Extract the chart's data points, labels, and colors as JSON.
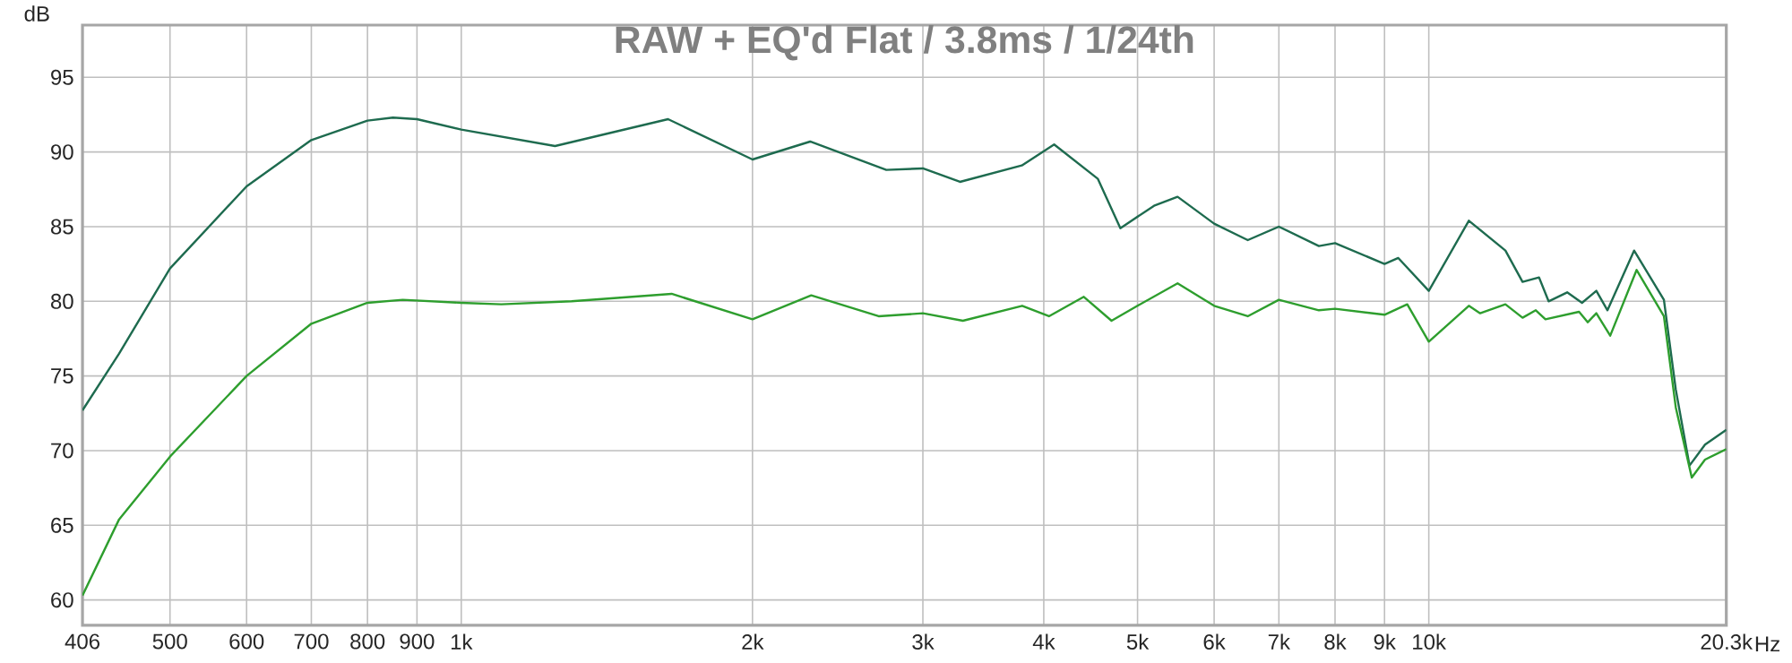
{
  "chart_data": {
    "type": "line",
    "title": "RAW + EQ'd Flat / 3.8ms / 1/24th",
    "ylabel": "dB",
    "xlabel": "Hz",
    "log": "x",
    "grid": true,
    "marker": "none",
    "line_style": "solid",
    "xlim": [
      406,
      20300
    ],
    "ylim": [
      58.3,
      98.5
    ],
    "xticks": [
      406,
      500,
      600,
      700,
      800,
      900,
      {
        "value": 1000,
        "label": "1k"
      },
      {
        "value": 2000,
        "label": "2k"
      },
      {
        "value": 3000,
        "label": "3k"
      },
      {
        "value": 4000,
        "label": "4k"
      },
      {
        "value": 5000,
        "label": "5k"
      },
      {
        "value": 6000,
        "label": "6k"
      },
      {
        "value": 7000,
        "label": "7k"
      },
      {
        "value": 8000,
        "label": "8k"
      },
      {
        "value": 9000,
        "label": "9k"
      },
      {
        "value": 10000,
        "label": "10k"
      },
      {
        "value": 20300,
        "label": "20.3k"
      }
    ],
    "yticks": [
      60,
      65,
      70,
      75,
      80,
      85,
      90,
      95
    ],
    "series": [
      {
        "color": "#1e6b4f",
        "x": [
          406,
          443,
          500,
          600,
          700,
          800,
          850,
          900,
          1000,
          1250,
          1636,
          2000,
          2294,
          2750,
          3000,
          3277,
          3797,
          4100,
          4550,
          4800,
          5200,
          5500,
          6000,
          6500,
          7000,
          7700,
          8000,
          9000,
          9300,
          10000,
          11000,
          12000,
          12500,
          13000,
          13300,
          13900,
          14400,
          14900,
          15300,
          16300,
          17500,
          18000,
          18600,
          19300,
          20300
        ],
        "values": [
          72.7,
          76.5,
          82.2,
          87.7,
          90.8,
          92.1,
          92.3,
          92.2,
          91.5,
          90.4,
          92.2,
          89.5,
          90.7,
          88.8,
          88.9,
          88.0,
          89.1,
          90.5,
          88.2,
          84.9,
          86.4,
          87.0,
          85.2,
          84.1,
          85.0,
          83.7,
          83.9,
          82.5,
          82.9,
          80.7,
          85.4,
          83.4,
          81.3,
          81.6,
          80.0,
          80.6,
          79.9,
          80.7,
          79.4,
          83.4,
          80.1,
          74.1,
          69.0,
          70.4,
          71.4
        ]
      },
      {
        "color": "#2e9e2e",
        "x": [
          406,
          443,
          500,
          600,
          700,
          800,
          870,
          1000,
          1100,
          1300,
          1650,
          2000,
          2300,
          2700,
          3000,
          3300,
          3800,
          4050,
          4400,
          4700,
          5000,
          5500,
          6000,
          6500,
          7000,
          7700,
          8000,
          9000,
          9500,
          10000,
          11000,
          11300,
          12000,
          12500,
          12900,
          13200,
          14300,
          14600,
          14900,
          15400,
          16400,
          17500,
          18000,
          18700,
          19300,
          20300
        ],
        "values": [
          60.3,
          65.4,
          69.6,
          75.0,
          78.5,
          79.9,
          80.1,
          79.9,
          79.8,
          80.0,
          80.5,
          78.8,
          80.4,
          79.0,
          79.2,
          78.7,
          79.7,
          79.0,
          80.3,
          78.7,
          79.7,
          81.2,
          79.7,
          79.0,
          80.1,
          79.4,
          79.5,
          79.1,
          79.8,
          77.3,
          79.7,
          79.2,
          79.8,
          78.9,
          79.4,
          78.8,
          79.3,
          78.6,
          79.2,
          77.7,
          82.1,
          79.0,
          72.9,
          68.2,
          69.4,
          70.1
        ]
      }
    ]
  }
}
